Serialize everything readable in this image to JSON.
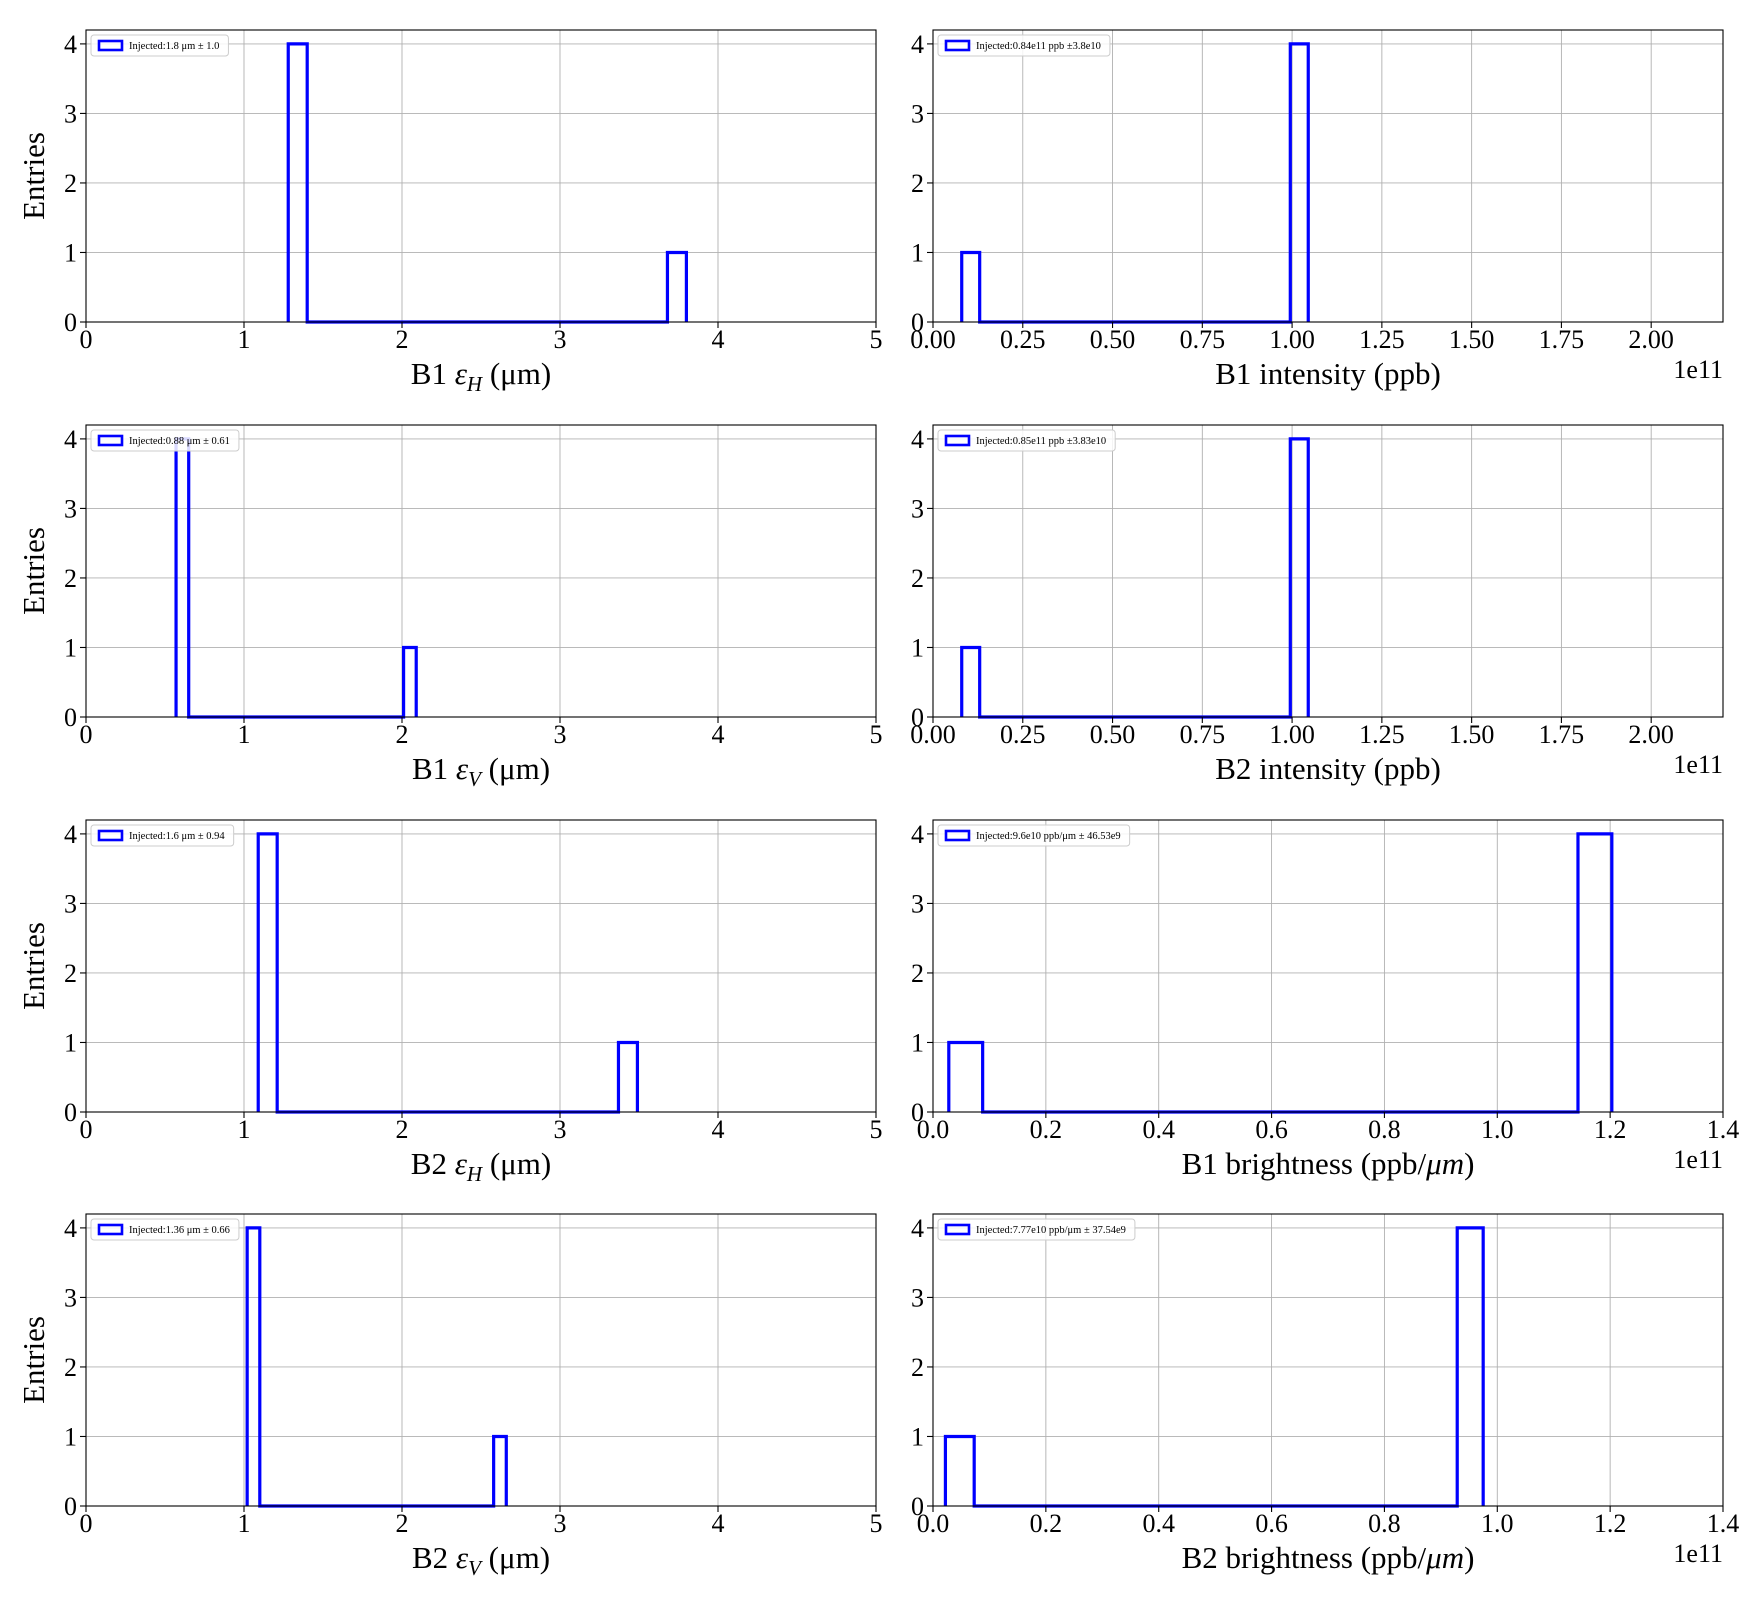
{
  "chart_data": [
    {
      "type": "histogram",
      "xlabel": "B1 εH (μm)",
      "xlabel_parts": {
        "prefix": "B1 ",
        "symbol": "ε",
        "sub": "H",
        "suffix": " (μm)"
      },
      "ylabel": "Entries",
      "xlim": [
        0,
        5
      ],
      "ylim": [
        0,
        4.2
      ],
      "xticks": [
        0,
        1,
        2,
        3,
        4,
        5
      ],
      "xtick_labels": [
        "0",
        "1",
        "2",
        "3",
        "4",
        "5"
      ],
      "yticks": [
        0,
        1,
        2,
        3,
        4
      ],
      "ytick_labels": [
        "0",
        "1",
        "2",
        "3",
        "4"
      ],
      "bins": [
        {
          "x0": 1.28,
          "x1": 1.4,
          "count": 4
        },
        {
          "x0": 3.68,
          "x1": 3.8,
          "count": 1
        }
      ],
      "baseline": [
        1.28,
        3.8
      ],
      "legend": "Injected:1.8 μm ± 1.0",
      "legend_position": "upper-left",
      "offset_text": "",
      "grid": true,
      "color": "#0000ff"
    },
    {
      "type": "histogram",
      "xlabel": "B1 intensity (ppb)",
      "ylabel": "",
      "xlim": [
        0,
        2.2
      ],
      "ylim": [
        0,
        4.2
      ],
      "xticks": [
        0,
        0.25,
        0.5,
        0.75,
        1.0,
        1.25,
        1.5,
        1.75,
        2.0
      ],
      "xtick_labels": [
        "0.00",
        "0.25",
        "0.50",
        "0.75",
        "1.00",
        "1.25",
        "1.50",
        "1.75",
        "2.00"
      ],
      "yticks": [
        0,
        1,
        2,
        3,
        4
      ],
      "ytick_labels": [
        "0",
        "1",
        "2",
        "3",
        "4"
      ],
      "bins": [
        {
          "x0": 0.08,
          "x1": 0.13,
          "count": 1
        },
        {
          "x0": 0.995,
          "x1": 1.045,
          "count": 4
        }
      ],
      "baseline": [
        0.08,
        1.045
      ],
      "legend": "Injected:0.84e11 ppb ±3.8e10",
      "legend_position": "upper-left",
      "offset_text": "1e11",
      "grid": true,
      "color": "#0000ff"
    },
    {
      "type": "histogram",
      "xlabel": "B1 εV (μm)",
      "xlabel_parts": {
        "prefix": "B1 ",
        "symbol": "ε",
        "sub": "V",
        "suffix": " (μm)"
      },
      "ylabel": "Entries",
      "xlim": [
        0,
        5
      ],
      "ylim": [
        0,
        4.2
      ],
      "xticks": [
        0,
        1,
        2,
        3,
        4,
        5
      ],
      "xtick_labels": [
        "0",
        "1",
        "2",
        "3",
        "4",
        "5"
      ],
      "yticks": [
        0,
        1,
        2,
        3,
        4
      ],
      "ytick_labels": [
        "0",
        "1",
        "2",
        "3",
        "4"
      ],
      "bins": [
        {
          "x0": 0.57,
          "x1": 0.65,
          "count": 4
        },
        {
          "x0": 2.01,
          "x1": 2.09,
          "count": 1
        }
      ],
      "baseline": [
        0.57,
        2.09
      ],
      "legend": "Injected:0.88 μm ± 0.61",
      "legend_position": "upper-left",
      "offset_text": "",
      "grid": true,
      "color": "#0000ff"
    },
    {
      "type": "histogram",
      "xlabel": "B2 intensity (ppb)",
      "ylabel": "",
      "xlim": [
        0,
        2.2
      ],
      "ylim": [
        0,
        4.2
      ],
      "xticks": [
        0,
        0.25,
        0.5,
        0.75,
        1.0,
        1.25,
        1.5,
        1.75,
        2.0
      ],
      "xtick_labels": [
        "0.00",
        "0.25",
        "0.50",
        "0.75",
        "1.00",
        "1.25",
        "1.50",
        "1.75",
        "2.00"
      ],
      "yticks": [
        0,
        1,
        2,
        3,
        4
      ],
      "ytick_labels": [
        "0",
        "1",
        "2",
        "3",
        "4"
      ],
      "bins": [
        {
          "x0": 0.08,
          "x1": 0.13,
          "count": 1
        },
        {
          "x0": 0.995,
          "x1": 1.045,
          "count": 4
        }
      ],
      "baseline": [
        0.08,
        1.045
      ],
      "legend": "Injected:0.85e11 ppb ±3.83e10",
      "legend_position": "upper-left",
      "offset_text": "1e11",
      "grid": true,
      "color": "#0000ff"
    },
    {
      "type": "histogram",
      "xlabel": "B2 εH (μm)",
      "xlabel_parts": {
        "prefix": "B2 ",
        "symbol": "ε",
        "sub": "H",
        "suffix": " (μm)"
      },
      "ylabel": "Entries",
      "xlim": [
        0,
        5
      ],
      "ylim": [
        0,
        4.2
      ],
      "xticks": [
        0,
        1,
        2,
        3,
        4,
        5
      ],
      "xtick_labels": [
        "0",
        "1",
        "2",
        "3",
        "4",
        "5"
      ],
      "yticks": [
        0,
        1,
        2,
        3,
        4
      ],
      "ytick_labels": [
        "0",
        "1",
        "2",
        "3",
        "4"
      ],
      "bins": [
        {
          "x0": 1.09,
          "x1": 1.21,
          "count": 4
        },
        {
          "x0": 3.37,
          "x1": 3.49,
          "count": 1
        }
      ],
      "baseline": [
        1.09,
        3.49
      ],
      "legend": "Injected:1.6 μm ± 0.94",
      "legend_position": "upper-left",
      "offset_text": "",
      "grid": true,
      "color": "#0000ff"
    },
    {
      "type": "histogram",
      "xlabel": "B1 brightness (ppb/μm)",
      "xlabel_parts": {
        "prefix": "B1 brightness (ppb/",
        "symbol": "μm",
        "sub": "",
        "suffix": ")"
      },
      "ylabel": "",
      "xlim": [
        0,
        1.4
      ],
      "ylim": [
        0,
        4.2
      ],
      "xticks": [
        0,
        0.2,
        0.4,
        0.6,
        0.8,
        1.0,
        1.2,
        1.4
      ],
      "xtick_labels": [
        "0.0",
        "0.2",
        "0.4",
        "0.6",
        "0.8",
        "1.0",
        "1.2",
        "1.4"
      ],
      "yticks": [
        0,
        1,
        2,
        3,
        4
      ],
      "ytick_labels": [
        "0",
        "1",
        "2",
        "3",
        "4"
      ],
      "bins": [
        {
          "x0": 0.028,
          "x1": 0.088,
          "count": 1
        },
        {
          "x0": 1.143,
          "x1": 1.203,
          "count": 4
        }
      ],
      "baseline": [
        0.028,
        1.203
      ],
      "legend": "Injected:9.6e10 ppb/μm ± 46.53e9",
      "legend_position": "upper-left",
      "offset_text": "1e11",
      "grid": true,
      "color": "#0000ff"
    },
    {
      "type": "histogram",
      "xlabel": "B2 εV (μm)",
      "xlabel_parts": {
        "prefix": "B2 ",
        "symbol": "ε",
        "sub": "V",
        "suffix": " (μm)"
      },
      "ylabel": "Entries",
      "xlim": [
        0,
        5
      ],
      "ylim": [
        0,
        4.2
      ],
      "xticks": [
        0,
        1,
        2,
        3,
        4,
        5
      ],
      "xtick_labels": [
        "0",
        "1",
        "2",
        "3",
        "4",
        "5"
      ],
      "yticks": [
        0,
        1,
        2,
        3,
        4
      ],
      "ytick_labels": [
        "0",
        "1",
        "2",
        "3",
        "4"
      ],
      "bins": [
        {
          "x0": 1.02,
          "x1": 1.1,
          "count": 4
        },
        {
          "x0": 2.58,
          "x1": 2.66,
          "count": 1
        }
      ],
      "baseline": [
        1.02,
        2.66
      ],
      "legend": "Injected:1.36 μm ± 0.66",
      "legend_position": "upper-left",
      "offset_text": "",
      "grid": true,
      "color": "#0000ff"
    },
    {
      "type": "histogram",
      "xlabel": "B2 brightness (ppb/μm)",
      "xlabel_parts": {
        "prefix": "B2 brightness (ppb/",
        "symbol": "μm",
        "sub": "",
        "suffix": ")"
      },
      "ylabel": "",
      "xlim": [
        0,
        1.4
      ],
      "ylim": [
        0,
        4.2
      ],
      "xticks": [
        0,
        0.2,
        0.4,
        0.6,
        0.8,
        1.0,
        1.2,
        1.4
      ],
      "xtick_labels": [
        "0.0",
        "0.2",
        "0.4",
        "0.6",
        "0.8",
        "1.0",
        "1.2",
        "1.4"
      ],
      "yticks": [
        0,
        1,
        2,
        3,
        4
      ],
      "ytick_labels": [
        "0",
        "1",
        "2",
        "3",
        "4"
      ],
      "bins": [
        {
          "x0": 0.022,
          "x1": 0.073,
          "count": 1
        },
        {
          "x0": 0.929,
          "x1": 0.975,
          "count": 4
        }
      ],
      "baseline": [
        0.022,
        0.975
      ],
      "legend": "Injected:7.77e10 ppb/μm ± 37.54e9",
      "legend_position": "upper-left",
      "offset_text": "1e11",
      "grid": true,
      "color": "#0000ff"
    }
  ]
}
